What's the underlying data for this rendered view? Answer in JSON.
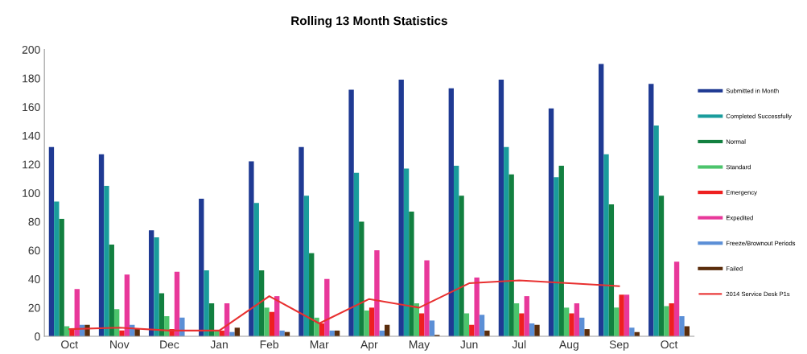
{
  "chart_data": {
    "type": "bar",
    "title": "Rolling 13 Month Statistics",
    "categories": [
      "Oct",
      "Nov",
      "Dec",
      "Jan",
      "Feb",
      "Mar",
      "Apr",
      "May",
      "Jun",
      "Jul",
      "Aug",
      "Sep",
      "Oct"
    ],
    "series": [
      {
        "name": "Submitted in Month",
        "color": "#1f3a93",
        "values": [
          132,
          127,
          74,
          96,
          122,
          132,
          172,
          179,
          173,
          179,
          159,
          190,
          176
        ]
      },
      {
        "name": "Completed Successfully",
        "color": "#1a9c9c",
        "values": [
          94,
          105,
          69,
          46,
          93,
          98,
          114,
          117,
          119,
          132,
          111,
          127,
          147
        ]
      },
      {
        "name": "Normal",
        "color": "#128040",
        "values": [
          82,
          64,
          30,
          23,
          46,
          58,
          80,
          87,
          98,
          113,
          119,
          92,
          98
        ]
      },
      {
        "name": "Standard",
        "color": "#4cc46c",
        "values": [
          7,
          19,
          14,
          4,
          20,
          13,
          18,
          23,
          16,
          23,
          20,
          20,
          21
        ]
      },
      {
        "name": "Emergency",
        "color": "#ee2020",
        "values": [
          5,
          4,
          5,
          4,
          17,
          9,
          20,
          16,
          8,
          16,
          16,
          29,
          23
        ]
      },
      {
        "name": "Expedited",
        "color": "#e8389a",
        "values": [
          33,
          43,
          45,
          23,
          28,
          40,
          60,
          53,
          41,
          28,
          23,
          29,
          52
        ]
      },
      {
        "name": "Freeze/Brownout Periods",
        "color": "#5b8fd6",
        "values": [
          8,
          8,
          13,
          3,
          4,
          4,
          4,
          11,
          15,
          9,
          13,
          6,
          14
        ]
      },
      {
        "name": "Failed",
        "color": "#5a2d0c",
        "values": [
          8,
          5,
          0,
          6,
          3,
          4,
          8,
          1,
          4,
          8,
          5,
          3,
          7
        ]
      },
      {
        "name": "2014 Service Desk P1s",
        "type": "line",
        "color": "#e83030",
        "values": [
          5,
          6,
          4,
          4,
          28,
          9,
          26,
          20,
          37,
          39,
          37,
          35,
          null
        ]
      }
    ],
    "ylim": [
      0,
      200
    ],
    "yticks": [
      0,
      20,
      40,
      60,
      80,
      100,
      120,
      140,
      160,
      180,
      200
    ],
    "grid": false,
    "legend": "right"
  }
}
